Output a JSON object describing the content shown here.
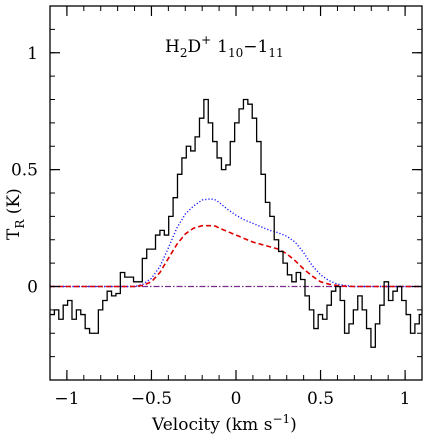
{
  "chart_data": {
    "type": "line",
    "title": {
      "species": "H",
      "sub1": "2",
      "species2": "D",
      "sup": "+",
      "transition_a": "1",
      "sub_a": "10",
      "dash": "−",
      "transition_b": "1",
      "sub_b": "11"
    },
    "xlabel": {
      "text": "Velocity (km s",
      "sup": "−1",
      "close": ")"
    },
    "ylabel": {
      "text": "T",
      "sub": "R",
      "unit": " (K)"
    },
    "xlim": [
      -1.1,
      1.1
    ],
    "ylim": [
      -0.4,
      1.2
    ],
    "xticks": [
      {
        "value": -1,
        "label": "−1"
      },
      {
        "value": -0.5,
        "label": "−0.5"
      },
      {
        "value": 0,
        "label": "0"
      },
      {
        "value": 0.5,
        "label": "0.5"
      },
      {
        "value": 1,
        "label": "1"
      }
    ],
    "yticks": [
      {
        "value": 0,
        "label": "0"
      },
      {
        "value": 0.5,
        "label": "0.5"
      },
      {
        "value": 1,
        "label": "1"
      }
    ],
    "series": [
      {
        "style": "histogram",
        "color": "#000000",
        "bin_width": 0.026,
        "x": [
          -1.1,
          -1.074,
          -1.048,
          -1.022,
          -0.996,
          -0.97,
          -0.944,
          -0.918,
          -0.892,
          -0.866,
          -0.84,
          -0.814,
          -0.788,
          -0.762,
          -0.736,
          -0.71,
          -0.684,
          -0.658,
          -0.632,
          -0.606,
          -0.58,
          -0.554,
          -0.528,
          -0.502,
          -0.476,
          -0.45,
          -0.424,
          -0.398,
          -0.372,
          -0.346,
          -0.32,
          -0.294,
          -0.268,
          -0.242,
          -0.216,
          -0.19,
          -0.164,
          -0.138,
          -0.112,
          -0.086,
          -0.06,
          -0.034,
          -0.008,
          0.018,
          0.044,
          0.07,
          0.096,
          0.122,
          0.148,
          0.174,
          0.2,
          0.226,
          0.252,
          0.278,
          0.304,
          0.33,
          0.356,
          0.382,
          0.408,
          0.434,
          0.46,
          0.486,
          0.512,
          0.538,
          0.564,
          0.59,
          0.616,
          0.642,
          0.668,
          0.694,
          0.72,
          0.746,
          0.772,
          0.798,
          0.824,
          0.85,
          0.876,
          0.902,
          0.928,
          0.954,
          0.98,
          1.006,
          1.032,
          1.058,
          1.084
        ],
        "y": [
          -0.12,
          -0.1,
          -0.14,
          -0.08,
          -0.06,
          -0.14,
          -0.1,
          -0.12,
          -0.18,
          -0.2,
          -0.2,
          -0.1,
          -0.06,
          -0.02,
          -0.04,
          -0.03,
          0.06,
          0.04,
          0.04,
          0.02,
          0.02,
          0.12,
          0.16,
          0.16,
          0.22,
          0.24,
          0.22,
          0.3,
          0.38,
          0.48,
          0.55,
          0.6,
          0.58,
          0.64,
          0.72,
          0.8,
          0.7,
          0.62,
          0.55,
          0.5,
          0.52,
          0.62,
          0.7,
          0.76,
          0.8,
          0.78,
          0.72,
          0.62,
          0.48,
          0.36,
          0.3,
          0.2,
          0.15,
          0.1,
          0.05,
          0.02,
          0.06,
          0.03,
          -0.04,
          -0.1,
          -0.18,
          -0.12,
          -0.14,
          -0.08,
          -0.02,
          0.0,
          -0.06,
          -0.2,
          -0.16,
          -0.1,
          -0.04,
          -0.1,
          -0.18,
          -0.26,
          -0.16,
          -0.08,
          0.02,
          -0.06,
          -0.02,
          0.0,
          -0.06,
          -0.12,
          -0.2,
          -0.16,
          -0.12
        ]
      },
      {
        "style": "dotted",
        "color": "#1a1aff",
        "x": [
          -1.1,
          -0.6,
          -0.55,
          -0.5,
          -0.45,
          -0.4,
          -0.35,
          -0.3,
          -0.25,
          -0.2,
          -0.15,
          -0.12,
          -0.1,
          -0.05,
          0.0,
          0.05,
          0.1,
          0.15,
          0.2,
          0.25,
          0.3,
          0.35,
          0.4,
          0.45,
          0.5,
          0.55,
          0.6,
          0.65,
          0.7,
          1.1
        ],
        "y": [
          0.0,
          0.0,
          0.01,
          0.035,
          0.085,
          0.165,
          0.25,
          0.31,
          0.345,
          0.37,
          0.375,
          0.37,
          0.36,
          0.33,
          0.305,
          0.285,
          0.27,
          0.255,
          0.24,
          0.23,
          0.215,
          0.19,
          0.145,
          0.09,
          0.05,
          0.025,
          0.01,
          0.004,
          0.0,
          0.0
        ]
      },
      {
        "style": "dashed",
        "color": "#e00000",
        "x": [
          -1.1,
          -0.6,
          -0.55,
          -0.5,
          -0.45,
          -0.4,
          -0.35,
          -0.3,
          -0.25,
          -0.2,
          -0.15,
          -0.12,
          -0.1,
          -0.05,
          0.0,
          0.05,
          0.1,
          0.15,
          0.2,
          0.25,
          0.3,
          0.35,
          0.4,
          0.45,
          0.5,
          0.55,
          0.6,
          0.65,
          0.7,
          1.1
        ],
        "y": [
          0.0,
          0.0,
          0.005,
          0.02,
          0.06,
          0.12,
          0.18,
          0.225,
          0.25,
          0.26,
          0.26,
          0.258,
          0.25,
          0.235,
          0.22,
          0.205,
          0.19,
          0.18,
          0.17,
          0.16,
          0.14,
          0.11,
          0.075,
          0.045,
          0.02,
          0.01,
          0.004,
          0.001,
          0.0,
          0.0
        ]
      },
      {
        "style": "baseline",
        "color": "#7a2a8a",
        "x": [
          -1.1,
          1.1
        ],
        "y": [
          0.0,
          0.0
        ]
      }
    ]
  }
}
